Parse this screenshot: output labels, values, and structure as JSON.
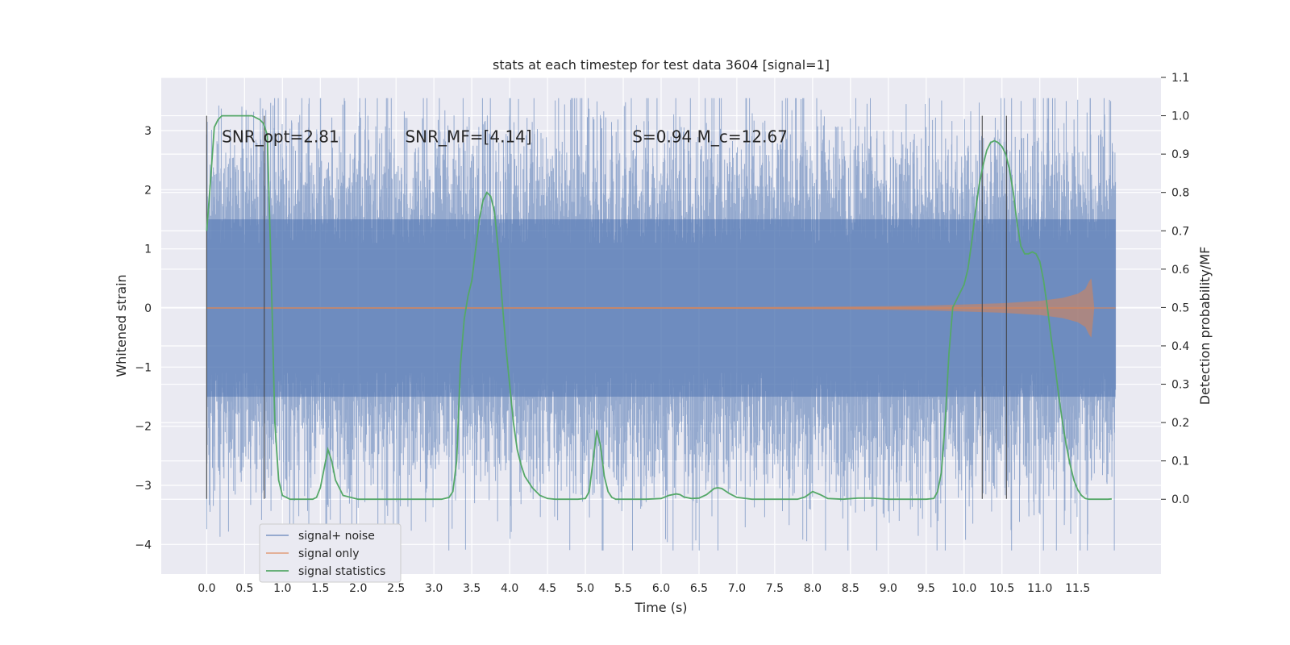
{
  "chart_data": {
    "type": "line",
    "title": "stats at each timestep for test data 3604 [signal=1]",
    "xlabel": "Time (s)",
    "ylabel_left": "Whitened strain",
    "ylabel_right": "Detection probability/MF",
    "xlim": [
      -0.6,
      12.6
    ],
    "ylim_left": [
      -4.5,
      3.9
    ],
    "ylim_right": [
      -0.195,
      1.1
    ],
    "x_ticks": [
      0.0,
      0.5,
      1.0,
      1.5,
      2.0,
      2.5,
      3.0,
      3.5,
      4.0,
      4.5,
      5.0,
      5.5,
      6.0,
      6.5,
      7.0,
      7.5,
      8.0,
      8.5,
      9.0,
      9.5,
      10.0,
      10.5,
      11.0,
      11.5
    ],
    "x_tick_labels": [
      "0.0",
      "0.5",
      "1.0",
      "1.5",
      "2.0",
      "2.5",
      "3.0",
      "3.5",
      "4.0",
      "4.5",
      "5.0",
      "5.5",
      "6.0",
      "6.5",
      "7.0",
      "7.5",
      "8.0",
      "8.5",
      "9.0",
      "9.5",
      "10.0",
      "10.5",
      "11.0",
      "11.5"
    ],
    "y_left_ticks": [
      3,
      2,
      1,
      0,
      -1,
      -2,
      -3,
      -4
    ],
    "y_left_tick_labels": [
      "3",
      "2",
      "1",
      "0",
      "−1",
      "−2",
      "−3",
      "−4"
    ],
    "y_right_ticks": [
      1.1,
      1.0,
      0.9,
      0.8,
      0.7,
      0.6,
      0.5,
      0.4,
      0.3,
      0.2,
      0.1,
      0.0
    ],
    "y_right_tick_labels": [
      "1.1",
      "1.0",
      "0.9",
      "0.8",
      "0.7",
      "0.6",
      "0.5",
      "0.4",
      "0.3",
      "0.2",
      "0.1",
      "0.0"
    ],
    "grid": true,
    "legend_position": "lower-left",
    "legend": [
      "signal+ noise",
      "signal only",
      "signal statistics"
    ],
    "annotations": [
      {
        "text": "SNR_opt=2.81",
        "x": 0.2,
        "y": 2.8
      },
      {
        "text": "SNR_MF=[4.14]",
        "x": 2.62,
        "y": 2.8
      },
      {
        "text": "S=0.94   M_c=12.67",
        "x": 5.62,
        "y": 2.8
      }
    ],
    "vertical_markers": [
      0.0,
      0.76,
      10.24,
      10.56
    ],
    "series": [
      {
        "name": "signal+ noise",
        "color": "#4c72b0",
        "axis": "left",
        "x_range": [
          0.0,
          12.0
        ],
        "typical_envelope": [
          -1.5,
          1.5
        ],
        "peak_range": [
          -4.1,
          3.55
        ]
      },
      {
        "name": "signal only",
        "color": "#dd8452",
        "axis": "left",
        "x": [
          0.0,
          7.0,
          8.0,
          9.0,
          9.5,
          10.0,
          10.5,
          11.0,
          11.3,
          11.5,
          11.6,
          11.65,
          11.68,
          11.72
        ],
        "amplitude": [
          0.01,
          0.015,
          0.02,
          0.03,
          0.04,
          0.06,
          0.08,
          0.12,
          0.17,
          0.24,
          0.32,
          0.45,
          0.5,
          0.0
        ]
      },
      {
        "name": "signal statistics",
        "color": "#55a868",
        "axis": "right",
        "x": [
          0.0,
          0.05,
          0.1,
          0.15,
          0.2,
          0.3,
          0.4,
          0.5,
          0.6,
          0.7,
          0.75,
          0.8,
          0.85,
          0.9,
          0.95,
          1.0,
          1.1,
          1.2,
          1.3,
          1.4,
          1.45,
          1.5,
          1.55,
          1.6,
          1.65,
          1.7,
          1.8,
          2.0,
          2.5,
          3.0,
          3.1,
          3.2,
          3.25,
          3.3,
          3.35,
          3.4,
          3.45,
          3.5,
          3.55,
          3.6,
          3.65,
          3.7,
          3.75,
          3.8,
          3.85,
          3.9,
          3.95,
          4.0,
          4.05,
          4.1,
          4.15,
          4.2,
          4.3,
          4.4,
          4.5,
          4.6,
          4.7,
          4.8,
          4.9,
          5.0,
          5.05,
          5.1,
          5.15,
          5.2,
          5.25,
          5.3,
          5.35,
          5.4,
          5.5,
          5.6,
          5.8,
          6.0,
          6.1,
          6.2,
          6.25,
          6.3,
          6.4,
          6.5,
          6.6,
          6.7,
          6.75,
          6.8,
          6.9,
          7.0,
          7.2,
          7.5,
          7.8,
          7.9,
          8.0,
          8.1,
          8.2,
          8.4,
          8.6,
          8.8,
          9.0,
          9.2,
          9.5,
          9.6,
          9.65,
          9.7,
          9.75,
          9.8,
          9.85,
          9.9,
          9.95,
          10.0,
          10.05,
          10.1,
          10.15,
          10.2,
          10.25,
          10.3,
          10.35,
          10.4,
          10.45,
          10.5,
          10.55,
          10.6,
          10.65,
          10.7,
          10.75,
          10.8,
          10.85,
          10.9,
          10.95,
          11.0,
          11.05,
          11.1,
          11.15,
          11.2,
          11.25,
          11.3,
          11.35,
          11.4,
          11.45,
          11.5,
          11.55,
          11.6,
          11.65,
          11.7,
          11.8,
          11.9,
          11.95
        ],
        "values": [
          0.7,
          0.83,
          0.97,
          0.99,
          1.0,
          1.0,
          1.0,
          1.0,
          1.0,
          0.99,
          0.98,
          0.95,
          0.6,
          0.2,
          0.05,
          0.01,
          0.0,
          0.0,
          0.0,
          0.0,
          0.005,
          0.03,
          0.08,
          0.13,
          0.1,
          0.05,
          0.01,
          0.0,
          0.0,
          0.0,
          0.0,
          0.005,
          0.02,
          0.1,
          0.35,
          0.47,
          0.53,
          0.57,
          0.65,
          0.73,
          0.78,
          0.8,
          0.79,
          0.75,
          0.65,
          0.52,
          0.4,
          0.3,
          0.2,
          0.13,
          0.09,
          0.06,
          0.03,
          0.01,
          0.002,
          0.0,
          0.0,
          0.0,
          0.0,
          0.002,
          0.02,
          0.1,
          0.18,
          0.14,
          0.06,
          0.02,
          0.005,
          0.0,
          0.0,
          0.0,
          0.0,
          0.002,
          0.01,
          0.014,
          0.012,
          0.006,
          0.002,
          0.003,
          0.012,
          0.028,
          0.03,
          0.028,
          0.015,
          0.005,
          0.0,
          0.0,
          0.0,
          0.006,
          0.02,
          0.012,
          0.002,
          0.0,
          0.003,
          0.003,
          0.0,
          0.0,
          0.0,
          0.002,
          0.02,
          0.07,
          0.2,
          0.38,
          0.5,
          0.52,
          0.54,
          0.56,
          0.6,
          0.67,
          0.75,
          0.82,
          0.87,
          0.91,
          0.93,
          0.935,
          0.93,
          0.92,
          0.9,
          0.86,
          0.8,
          0.72,
          0.66,
          0.64,
          0.64,
          0.645,
          0.64,
          0.62,
          0.57,
          0.5,
          0.42,
          0.35,
          0.27,
          0.2,
          0.14,
          0.09,
          0.05,
          0.025,
          0.01,
          0.002,
          0.0,
          0.0,
          0.0,
          0.0,
          0.001
        ]
      }
    ]
  }
}
